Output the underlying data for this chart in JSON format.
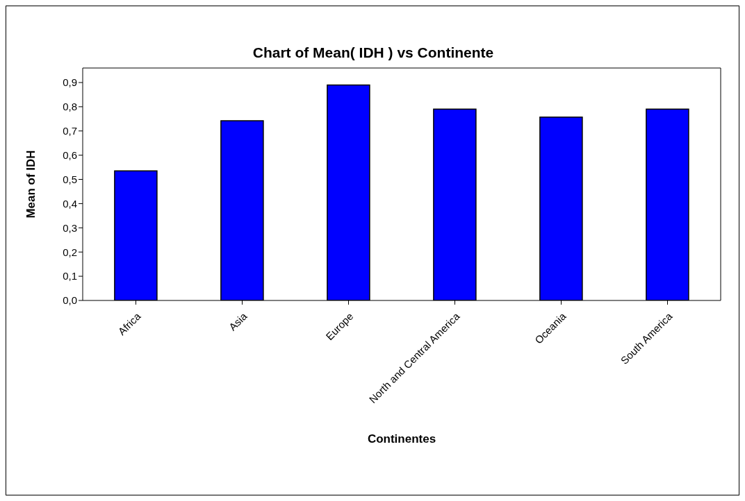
{
  "chart_data": {
    "type": "bar",
    "title": "Chart of Mean( IDH ) vs Continente",
    "xlabel": "Continentes",
    "ylabel": "Mean of IDH",
    "categories": [
      "Africa",
      "Asia",
      "Europe",
      "North and Central America",
      "Oceania",
      "South America"
    ],
    "values": [
      0.535,
      0.742,
      0.89,
      0.79,
      0.757,
      0.79
    ],
    "color": "#0000ff",
    "ylim": [
      0,
      0.96
    ],
    "yticks": [
      {
        "value": 0,
        "label": "0,0"
      },
      {
        "value": 0.1,
        "label": "0,1"
      },
      {
        "value": 0.2,
        "label": "0,2"
      },
      {
        "value": 0.3,
        "label": "0,3"
      },
      {
        "value": 0.4,
        "label": "0,4"
      },
      {
        "value": 0.5,
        "label": "0,5"
      },
      {
        "value": 0.6,
        "label": "0,6"
      },
      {
        "value": 0.7,
        "label": "0,7"
      },
      {
        "value": 0.8,
        "label": "0,8"
      },
      {
        "value": 0.9,
        "label": "0,9"
      }
    ]
  }
}
